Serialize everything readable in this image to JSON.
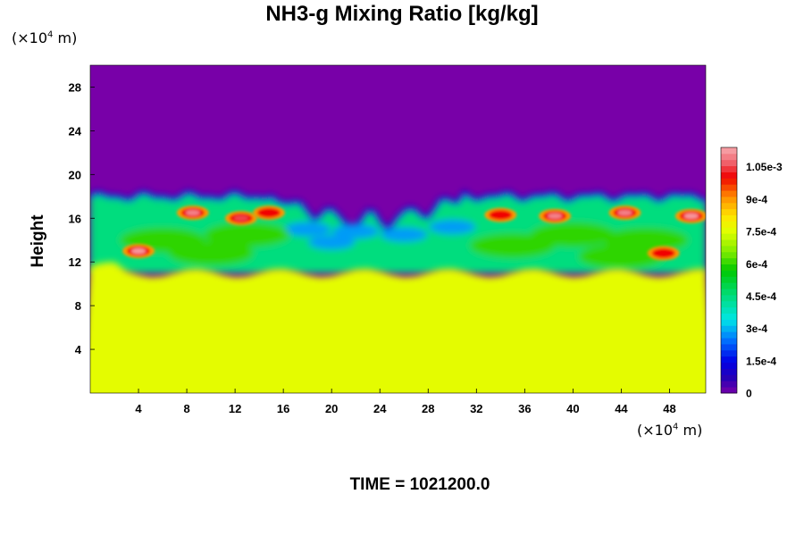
{
  "chart_data": {
    "type": "heatmap",
    "title": "NH3-g Mixing Ratio [kg/kg]",
    "ylabel": "Height",
    "y_unit": {
      "prefix": "(×10",
      "exp": "4",
      "suffix": " m)"
    },
    "x_unit": {
      "prefix": "(×10",
      "exp": "4",
      "suffix": " m)"
    },
    "xlim": [
      0,
      51
    ],
    "ylim": [
      0,
      30
    ],
    "x_ticks": [
      4,
      8,
      12,
      16,
      20,
      24,
      28,
      32,
      36,
      40,
      44,
      48
    ],
    "y_ticks": [
      4,
      8,
      12,
      16,
      20,
      24,
      28
    ],
    "colorbar": {
      "min": 0,
      "max": 0.00114,
      "tick_values": [
        0,
        0.00015,
        0.0003,
        0.00045,
        0.0006,
        0.00075,
        0.0009,
        0.00105
      ],
      "tick_labels": [
        "0",
        "1.5e-4",
        "3e-4",
        "4.5e-4",
        "6e-4",
        "7.5e-4",
        "9e-4",
        "1.05e-3"
      ]
    },
    "fields": {
      "lower_layer_value": 0.00076,
      "upper_layer_value": 0,
      "cloud_top_height": 18,
      "cloud_base_height": 11
    },
    "hotspots": [
      {
        "x": 4,
        "y": 13,
        "value": 0.00112
      },
      {
        "x": 8.5,
        "y": 16.5,
        "value": 0.0011
      },
      {
        "x": 12.5,
        "y": 16,
        "value": 0.00105
      },
      {
        "x": 14.8,
        "y": 16.5,
        "value": 0.001
      },
      {
        "x": 34,
        "y": 16.3,
        "value": 0.001
      },
      {
        "x": 38.5,
        "y": 16.2,
        "value": 0.0011
      },
      {
        "x": 44.3,
        "y": 16.5,
        "value": 0.0011
      },
      {
        "x": 47.5,
        "y": 12.8,
        "value": 0.001
      },
      {
        "x": 49.8,
        "y": 16.2,
        "value": 0.00112
      }
    ],
    "time_label": "TIME = 1021200.0"
  }
}
